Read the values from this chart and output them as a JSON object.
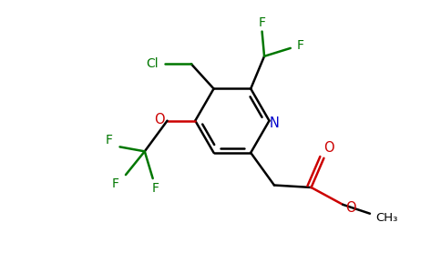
{
  "bg_color": "#ffffff",
  "ring_color": "#000000",
  "N_color": "#0000cc",
  "O_color": "#cc0000",
  "F_color": "#007700",
  "Cl_color": "#007700",
  "bond_width": 1.8,
  "figsize": [
    4.84,
    3.0
  ],
  "dpi": 100,
  "xlim": [
    0,
    9.68
  ],
  "ylim": [
    0,
    6.0
  ]
}
